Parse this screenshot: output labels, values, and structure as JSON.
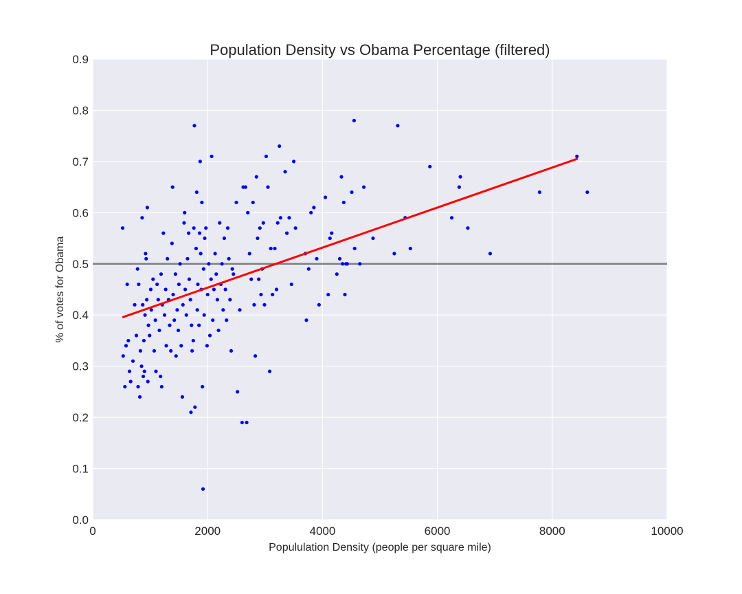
{
  "chart_data": {
    "type": "scatter",
    "title": "Population Density vs Obama Percentage (filtered)",
    "xlabel": "Popululation Density (people per square mile)",
    "ylabel": "% of votes for Obama",
    "xlim": [
      0,
      10000
    ],
    "ylim": [
      0.0,
      0.9
    ],
    "xticks": [
      0,
      2000,
      4000,
      6000,
      8000,
      10000
    ],
    "yticks": [
      0.0,
      0.1,
      0.2,
      0.3,
      0.4,
      0.5,
      0.6,
      0.7,
      0.8,
      0.9
    ],
    "xtick_labels": [
      "0",
      "2000",
      "4000",
      "6000",
      "8000",
      "10000"
    ],
    "ytick_labels": [
      "0.0",
      "0.1",
      "0.2",
      "0.3",
      "0.4",
      "0.5",
      "0.6",
      "0.7",
      "0.8",
      "0.9"
    ],
    "grid": true,
    "colors": {
      "background": "#eaeaf2",
      "grid": "#ffffff",
      "points": "#0000ff",
      "fit": "#ff0000",
      "reference": "#808080"
    },
    "points": [
      [
        520,
        0.57
      ],
      [
        530,
        0.32
      ],
      [
        560,
        0.26
      ],
      [
        580,
        0.34
      ],
      [
        600,
        0.46
      ],
      [
        620,
        0.35
      ],
      [
        640,
        0.29
      ],
      [
        660,
        0.27
      ],
      [
        700,
        0.31
      ],
      [
        730,
        0.42
      ],
      [
        760,
        0.36
      ],
      [
        780,
        0.49
      ],
      [
        790,
        0.26
      ],
      [
        800,
        0.46
      ],
      [
        820,
        0.24
      ],
      [
        830,
        0.33
      ],
      [
        850,
        0.3
      ],
      [
        860,
        0.59
      ],
      [
        870,
        0.42
      ],
      [
        880,
        0.28
      ],
      [
        890,
        0.35
      ],
      [
        900,
        0.29
      ],
      [
        910,
        0.4
      ],
      [
        920,
        0.52
      ],
      [
        930,
        0.51
      ],
      [
        940,
        0.43
      ],
      [
        950,
        0.61
      ],
      [
        960,
        0.27
      ],
      [
        970,
        0.38
      ],
      [
        990,
        0.36
      ],
      [
        1010,
        0.45
      ],
      [
        1020,
        0.41
      ],
      [
        1050,
        0.47
      ],
      [
        1070,
        0.33
      ],
      [
        1090,
        0.39
      ],
      [
        1100,
        0.29
      ],
      [
        1120,
        0.46
      ],
      [
        1140,
        0.43
      ],
      [
        1160,
        0.37
      ],
      [
        1180,
        0.28
      ],
      [
        1190,
        0.48
      ],
      [
        1200,
        0.26
      ],
      [
        1210,
        0.42
      ],
      [
        1230,
        0.56
      ],
      [
        1250,
        0.4
      ],
      [
        1270,
        0.45
      ],
      [
        1280,
        0.34
      ],
      [
        1300,
        0.51
      ],
      [
        1320,
        0.43
      ],
      [
        1340,
        0.38
      ],
      [
        1360,
        0.33
      ],
      [
        1380,
        0.54
      ],
      [
        1390,
        0.65
      ],
      [
        1400,
        0.44
      ],
      [
        1420,
        0.39
      ],
      [
        1440,
        0.48
      ],
      [
        1450,
        0.32
      ],
      [
        1470,
        0.41
      ],
      [
        1490,
        0.37
      ],
      [
        1500,
        0.46
      ],
      [
        1520,
        0.5
      ],
      [
        1540,
        0.34
      ],
      [
        1560,
        0.24
      ],
      [
        1570,
        0.42
      ],
      [
        1590,
        0.58
      ],
      [
        1600,
        0.6
      ],
      [
        1610,
        0.45
      ],
      [
        1630,
        0.4
      ],
      [
        1650,
        0.51
      ],
      [
        1670,
        0.56
      ],
      [
        1680,
        0.47
      ],
      [
        1700,
        0.43
      ],
      [
        1710,
        0.21
      ],
      [
        1720,
        0.38
      ],
      [
        1730,
        0.33
      ],
      [
        1750,
        0.35
      ],
      [
        1760,
        0.57
      ],
      [
        1770,
        0.77
      ],
      [
        1780,
        0.22
      ],
      [
        1800,
        0.53
      ],
      [
        1810,
        0.64
      ],
      [
        1820,
        0.41
      ],
      [
        1830,
        0.46
      ],
      [
        1850,
        0.38
      ],
      [
        1860,
        0.56
      ],
      [
        1870,
        0.7
      ],
      [
        1880,
        0.52
      ],
      [
        1890,
        0.45
      ],
      [
        1900,
        0.62
      ],
      [
        1910,
        0.26
      ],
      [
        1920,
        0.06
      ],
      [
        1930,
        0.49
      ],
      [
        1940,
        0.4
      ],
      [
        1950,
        0.55
      ],
      [
        1970,
        0.57
      ],
      [
        1990,
        0.34
      ],
      [
        2000,
        0.44
      ],
      [
        2020,
        0.5
      ],
      [
        2040,
        0.36
      ],
      [
        2060,
        0.47
      ],
      [
        2070,
        0.71
      ],
      [
        2090,
        0.39
      ],
      [
        2110,
        0.45
      ],
      [
        2130,
        0.52
      ],
      [
        2150,
        0.48
      ],
      [
        2170,
        0.43
      ],
      [
        2190,
        0.37
      ],
      [
        2210,
        0.58
      ],
      [
        2230,
        0.46
      ],
      [
        2250,
        0.5
      ],
      [
        2270,
        0.41
      ],
      [
        2290,
        0.55
      ],
      [
        2310,
        0.45
      ],
      [
        2330,
        0.39
      ],
      [
        2350,
        0.57
      ],
      [
        2370,
        0.51
      ],
      [
        2390,
        0.43
      ],
      [
        2410,
        0.33
      ],
      [
        2430,
        0.49
      ],
      [
        2450,
        0.48
      ],
      [
        2500,
        0.62
      ],
      [
        2520,
        0.25
      ],
      [
        2560,
        0.41
      ],
      [
        2600,
        0.19
      ],
      [
        2620,
        0.65
      ],
      [
        2660,
        0.65
      ],
      [
        2680,
        0.19
      ],
      [
        2700,
        0.6
      ],
      [
        2730,
        0.52
      ],
      [
        2760,
        0.47
      ],
      [
        2790,
        0.62
      ],
      [
        2810,
        0.42
      ],
      [
        2830,
        0.32
      ],
      [
        2850,
        0.67
      ],
      [
        2870,
        0.55
      ],
      [
        2890,
        0.47
      ],
      [
        2910,
        0.57
      ],
      [
        2930,
        0.44
      ],
      [
        2950,
        0.49
      ],
      [
        2970,
        0.58
      ],
      [
        2990,
        0.42
      ],
      [
        3020,
        0.71
      ],
      [
        3050,
        0.65
      ],
      [
        3080,
        0.29
      ],
      [
        3100,
        0.53
      ],
      [
        3130,
        0.44
      ],
      [
        3170,
        0.53
      ],
      [
        3200,
        0.45
      ],
      [
        3220,
        0.58
      ],
      [
        3250,
        0.73
      ],
      [
        3270,
        0.59
      ],
      [
        3350,
        0.68
      ],
      [
        3380,
        0.56
      ],
      [
        3420,
        0.59
      ],
      [
        3460,
        0.46
      ],
      [
        3500,
        0.7
      ],
      [
        3530,
        0.57
      ],
      [
        3700,
        0.52
      ],
      [
        3720,
        0.39
      ],
      [
        3760,
        0.49
      ],
      [
        3800,
        0.6
      ],
      [
        3850,
        0.61
      ],
      [
        3900,
        0.51
      ],
      [
        3940,
        0.42
      ],
      [
        4050,
        0.63
      ],
      [
        4100,
        0.44
      ],
      [
        4130,
        0.55
      ],
      [
        4160,
        0.56
      ],
      [
        4250,
        0.48
      ],
      [
        4300,
        0.51
      ],
      [
        4330,
        0.67
      ],
      [
        4350,
        0.5
      ],
      [
        4370,
        0.62
      ],
      [
        4390,
        0.44
      ],
      [
        4410,
        0.5
      ],
      [
        4430,
        0.5
      ],
      [
        4510,
        0.64
      ],
      [
        4550,
        0.78
      ],
      [
        4560,
        0.53
      ],
      [
        4650,
        0.5
      ],
      [
        4720,
        0.65
      ],
      [
        4880,
        0.55
      ],
      [
        5250,
        0.52
      ],
      [
        5310,
        0.77
      ],
      [
        5440,
        0.59
      ],
      [
        5530,
        0.53
      ],
      [
        5870,
        0.69
      ],
      [
        6250,
        0.59
      ],
      [
        6380,
        0.65
      ],
      [
        6400,
        0.67
      ],
      [
        6530,
        0.57
      ],
      [
        6920,
        0.52
      ],
      [
        7780,
        0.64
      ],
      [
        8430,
        0.71
      ],
      [
        8610,
        0.64
      ]
    ],
    "fit_line": {
      "x": [
        530,
        8430
      ],
      "y": [
        0.396,
        0.705
      ]
    },
    "reference_line": {
      "y": 0.5
    }
  }
}
